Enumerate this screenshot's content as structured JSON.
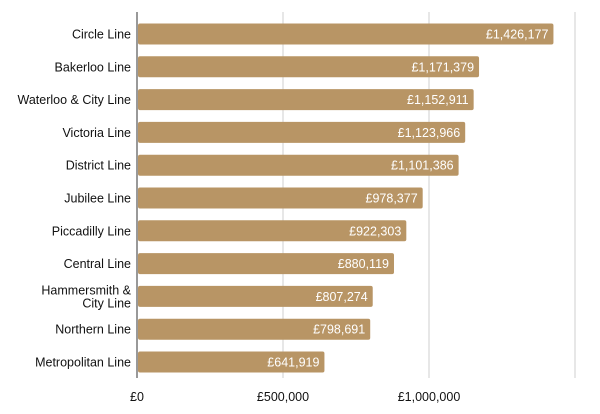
{
  "colors": {
    "bar": "#b89565",
    "grid": "#cfcfcf",
    "axis": "#333333",
    "value_text": "#ffffff"
  },
  "chart_data": {
    "type": "bar",
    "orientation": "horizontal",
    "title": "",
    "xlabel": "",
    "ylabel": "",
    "categories": [
      "Circle Line",
      "Bakerloo Line",
      "Waterloo & City Line",
      "Victoria Line",
      "District Line",
      "Jubilee Line",
      "Piccadilly Line",
      "Central Line",
      "Hammersmith & City Line",
      "Northern Line",
      "Metropolitan Line"
    ],
    "values": [
      1426177,
      1171379,
      1152911,
      1123966,
      1101386,
      978377,
      922303,
      880119,
      807274,
      798691,
      641919
    ],
    "value_labels": [
      "£1,426,177",
      "£1,171,379",
      "£1,152,911",
      "£1,123,966",
      "£1,101,386",
      "£978,377",
      "£922,303",
      "£880,119",
      "£807,274",
      "£798,691",
      "£641,919"
    ],
    "xlim": [
      0,
      1500000
    ],
    "x_ticks": [
      0,
      500000,
      1000000,
      1500000
    ],
    "x_tick_labels": [
      "£0",
      "£500,000",
      "£1,000,000",
      ""
    ],
    "grid": true,
    "legend": "none"
  }
}
